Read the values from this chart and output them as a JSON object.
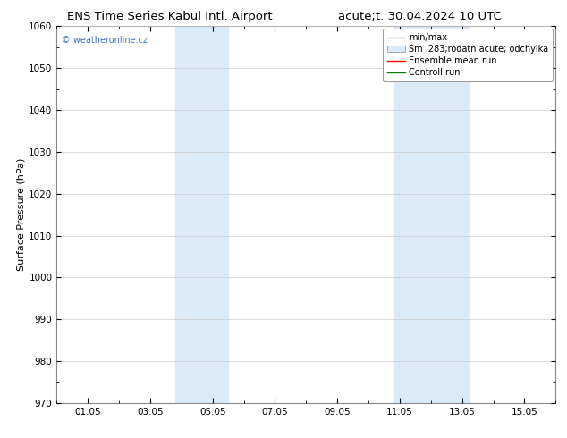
{
  "title_left": "ENS Time Series Kabul Intl. Airport",
  "title_right": "acute;t. 30.04.2024 10 UTC",
  "ylabel": "Surface Pressure (hPa)",
  "ylim": [
    970,
    1060
  ],
  "yticks": [
    970,
    980,
    990,
    1000,
    1010,
    1020,
    1030,
    1040,
    1050,
    1060
  ],
  "xtick_labels": [
    "01.05",
    "03.05",
    "05.05",
    "07.05",
    "09.05",
    "11.05",
    "13.05",
    "15.05"
  ],
  "xtick_positions": [
    1,
    3,
    5,
    7,
    9,
    11,
    13,
    15
  ],
  "xlim": [
    0,
    16
  ],
  "shaded_bands": [
    {
      "x_start": 3.8,
      "x_end": 5.5
    },
    {
      "x_start": 10.8,
      "x_end": 13.2
    }
  ],
  "shaded_color": "#daeaf7",
  "watermark": "© weatheronline.cz",
  "watermark_color": "#4472c4",
  "bg_color": "#ffffff",
  "grid_color": "#cccccc",
  "tick_label_fontsize": 7.5,
  "title_fontsize": 9.5,
  "ylabel_fontsize": 8,
  "legend_fontsize": 7,
  "spine_color": "#888888"
}
